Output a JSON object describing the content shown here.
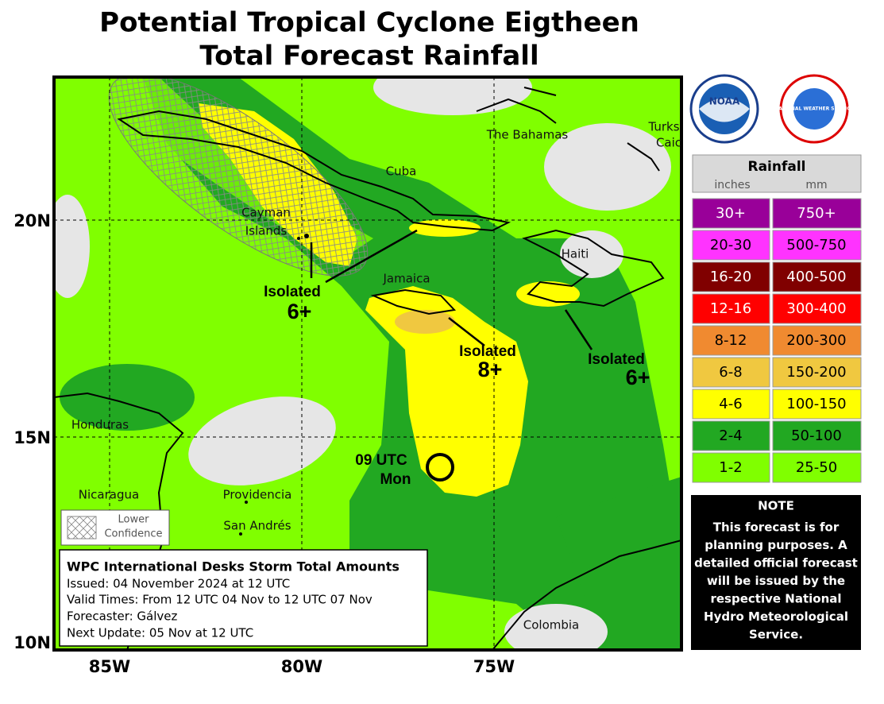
{
  "header": {
    "title": [
      "Potential Tropical Cyclone Eigtheen",
      "Total Forecast Rainfall"
    ]
  },
  "logos": {
    "noaa": "NOAA",
    "nws": "NATIONAL WEATHER SERVICE"
  },
  "map": {
    "lat_labels": [
      "20N",
      "15N",
      "10N"
    ],
    "lon_labels": [
      "85W",
      "80W",
      "75W"
    ],
    "places": {
      "bahamas": "The Bahamas",
      "turks": [
        "Turks",
        "Caic"
      ],
      "cuba": "Cuba",
      "cayman": [
        "Cayman",
        "Islands"
      ],
      "haiti": "Haiti",
      "jamaica": "Jamaica",
      "honduras": "Honduras",
      "nicaragua": "Nicaragua",
      "providencia": "Providencia",
      "san_andres": "San Andrés",
      "colombia": "Colombia"
    },
    "annotations": [
      {
        "lines": [
          "Isolated",
          "6+"
        ]
      },
      {
        "lines": [
          "Isolated",
          "8+"
        ]
      },
      {
        "lines": [
          "Isolated",
          "6+"
        ]
      }
    ],
    "storm": {
      "lines": [
        "09 UTC",
        "Mon"
      ]
    },
    "lower_confidence": [
      "Lower",
      "Confidence"
    ]
  },
  "info": {
    "title": "WPC International Desks Storm Total Amounts",
    "lines": [
      "Issued:  04 November 2024 at 12 UTC",
      "Valid Times:  From 12 UTC 04 Nov to 12 UTC 07 Nov",
      "Forecaster: Gálvez",
      "Next Update: 05 Nov at 12 UTC"
    ]
  },
  "legend": {
    "title": "Rainfall",
    "units": [
      "inches",
      "mm"
    ],
    "rows": [
      {
        "inches": "30+",
        "mm": "750+",
        "color": "#990099"
      },
      {
        "inches": "20-30",
        "mm": "500-750",
        "color": "#ff33ff"
      },
      {
        "inches": "16-20",
        "mm": "400-500",
        "color": "#800000"
      },
      {
        "inches": "12-16",
        "mm": "300-400",
        "color": "#ff0000"
      },
      {
        "inches": "8-12",
        "mm": "200-300",
        "color": "#f08a30"
      },
      {
        "inches": "6-8",
        "mm": "150-200",
        "color": "#f0c840"
      },
      {
        "inches": "4-6",
        "mm": "100-150",
        "color": "#ffff00"
      },
      {
        "inches": "2-4",
        "mm": "50-100",
        "color": "#22a822"
      },
      {
        "inches": "1-2",
        "mm": "25-50",
        "color": "#80ff00"
      }
    ]
  },
  "note": {
    "title": "NOTE",
    "lines": [
      "This forecast is for",
      "planning purposes. A",
      "detailed official forecast",
      "will be issued by the",
      "respective National",
      "Hydro Meteorological",
      "Service."
    ]
  }
}
